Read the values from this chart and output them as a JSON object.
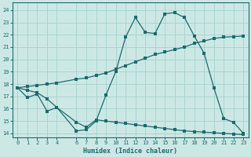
{
  "xlabel": "Humidex (Indice chaleur)",
  "bg_color": "#cce8e5",
  "grid_color": "#aad4d0",
  "line_color": "#1a6b6b",
  "xlim": [
    -0.5,
    23.5
  ],
  "ylim": [
    13.7,
    24.6
  ],
  "yticks": [
    14,
    15,
    16,
    17,
    18,
    19,
    20,
    21,
    22,
    23,
    24
  ],
  "xticks": [
    0,
    1,
    2,
    3,
    4,
    6,
    7,
    8,
    9,
    10,
    11,
    12,
    13,
    14,
    15,
    16,
    17,
    18,
    19,
    20,
    21,
    22,
    23
  ],
  "line1_x": [
    0,
    1,
    2,
    3,
    4,
    6,
    7,
    8,
    9,
    10,
    11,
    12,
    13,
    14,
    15,
    16,
    17,
    18,
    19,
    20,
    21,
    22,
    23
  ],
  "line1_y": [
    17.7,
    16.9,
    17.2,
    15.8,
    16.1,
    14.2,
    14.3,
    15.0,
    17.1,
    19.0,
    21.8,
    23.4,
    22.2,
    22.1,
    23.7,
    23.8,
    23.4,
    21.9,
    20.5,
    17.7,
    15.2,
    14.9,
    14.0
  ],
  "line2_x": [
    0,
    1,
    2,
    3,
    4,
    6,
    7,
    8,
    9,
    10,
    11,
    12,
    13,
    14,
    15,
    16,
    17,
    18,
    19,
    20,
    21,
    22,
    23
  ],
  "line2_y": [
    17.7,
    17.8,
    17.9,
    18.0,
    18.1,
    18.4,
    18.5,
    18.7,
    18.9,
    19.2,
    19.5,
    19.8,
    20.1,
    20.4,
    20.6,
    20.8,
    21.0,
    21.3,
    21.5,
    21.7,
    21.8,
    21.85,
    21.9
  ],
  "line3_x": [
    0,
    1,
    2,
    3,
    4,
    6,
    7,
    8,
    9,
    10,
    11,
    12,
    13,
    14,
    15,
    16,
    17,
    18,
    19,
    20,
    21,
    22,
    23
  ],
  "line3_y": [
    17.7,
    17.5,
    17.3,
    16.8,
    16.1,
    14.9,
    14.5,
    15.1,
    15.0,
    14.9,
    14.8,
    14.7,
    14.6,
    14.5,
    14.4,
    14.3,
    14.2,
    14.15,
    14.1,
    14.05,
    14.0,
    13.95,
    13.9
  ]
}
